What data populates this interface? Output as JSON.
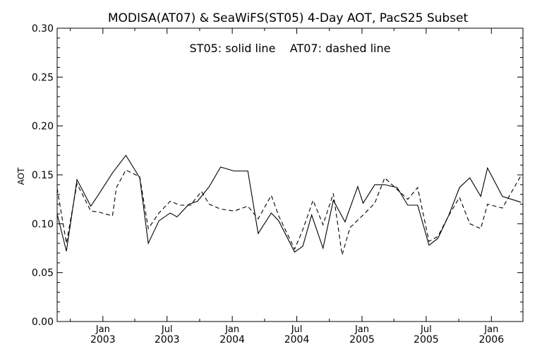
{
  "chart_data": {
    "type": "line",
    "title": "MODISA(AT07) & SeaWiFS(ST05) 4-Day AOT, PacS25 Subset",
    "annotation": "ST05: solid line    AT07: dashed line",
    "ylabel": "AOT",
    "xlabel": "",
    "ylim": [
      0.0,
      0.3
    ],
    "xlim": [
      "2002-08-25",
      "2006-03-31"
    ],
    "grid": false,
    "legend": "none",
    "line_color": "#000000",
    "y_ticks": [
      "0.00",
      "0.05",
      "0.10",
      "0.15",
      "0.20",
      "0.25",
      "0.30"
    ],
    "x_ticks": [
      {
        "date": "2003-01-01",
        "month": "Jan",
        "year": "2003"
      },
      {
        "date": "2003-07-01",
        "month": "Jul",
        "year": "2003"
      },
      {
        "date": "2004-01-01",
        "month": "Jan",
        "year": "2004"
      },
      {
        "date": "2004-07-01",
        "month": "Jul",
        "year": "2004"
      },
      {
        "date": "2005-01-01",
        "month": "Jan",
        "year": "2005"
      },
      {
        "date": "2005-07-01",
        "month": "Jul",
        "year": "2005"
      },
      {
        "date": "2006-01-01",
        "month": "Jan",
        "year": "2006"
      }
    ],
    "x_minor_ticks": [
      "2002-10-01",
      "2003-04-01",
      "2003-10-01",
      "2004-04-01",
      "2004-10-01",
      "2005-04-01",
      "2005-10-01"
    ],
    "series": [
      {
        "name": "ST05",
        "style": "solid",
        "points": [
          [
            "2002-08-25",
            0.11
          ],
          [
            "2002-09-20",
            0.072
          ],
          [
            "2002-10-20",
            0.145
          ],
          [
            "2002-11-28",
            0.118
          ],
          [
            "2002-12-20",
            0.13
          ],
          [
            "2003-01-28",
            0.152
          ],
          [
            "2003-03-07",
            0.17
          ],
          [
            "2003-04-15",
            0.147
          ],
          [
            "2003-05-09",
            0.08
          ],
          [
            "2003-06-08",
            0.103
          ],
          [
            "2003-07-10",
            0.111
          ],
          [
            "2003-07-29",
            0.107
          ],
          [
            "2003-09-01",
            0.12
          ],
          [
            "2003-09-25",
            0.123
          ],
          [
            "2003-10-28",
            0.138
          ],
          [
            "2003-11-29",
            0.158
          ],
          [
            "2004-01-06",
            0.154
          ],
          [
            "2004-02-14",
            0.154
          ],
          [
            "2004-03-14",
            0.09
          ],
          [
            "2004-04-20",
            0.111
          ],
          [
            "2004-05-11",
            0.103
          ],
          [
            "2004-06-25",
            0.071
          ],
          [
            "2004-07-18",
            0.077
          ],
          [
            "2004-08-12",
            0.109
          ],
          [
            "2004-09-13",
            0.075
          ],
          [
            "2004-10-12",
            0.124
          ],
          [
            "2004-11-14",
            0.102
          ],
          [
            "2004-12-20",
            0.138
          ],
          [
            "2005-01-04",
            0.121
          ],
          [
            "2005-02-06",
            0.14
          ],
          [
            "2005-03-06",
            0.14
          ],
          [
            "2005-04-10",
            0.137
          ],
          [
            "2005-05-10",
            0.119
          ],
          [
            "2005-06-07",
            0.119
          ],
          [
            "2005-07-09",
            0.078
          ],
          [
            "2005-08-03",
            0.085
          ],
          [
            "2005-09-02",
            0.108
          ],
          [
            "2005-10-03",
            0.137
          ],
          [
            "2005-11-01",
            0.147
          ],
          [
            "2005-12-02",
            0.128
          ],
          [
            "2005-12-21",
            0.157
          ],
          [
            "2006-02-01",
            0.128
          ],
          [
            "2006-03-25",
            0.122
          ]
        ]
      },
      {
        "name": "AT07",
        "style": "dashed",
        "points": [
          [
            "2002-08-25",
            0.136
          ],
          [
            "2002-09-20",
            0.08
          ],
          [
            "2002-10-20",
            0.141
          ],
          [
            "2002-11-28",
            0.113
          ],
          [
            "2002-12-20",
            0.112
          ],
          [
            "2003-01-28",
            0.108
          ],
          [
            "2003-02-08",
            0.137
          ],
          [
            "2003-03-07",
            0.155
          ],
          [
            "2003-04-15",
            0.148
          ],
          [
            "2003-05-09",
            0.095
          ],
          [
            "2003-06-08",
            0.111
          ],
          [
            "2003-07-10",
            0.123
          ],
          [
            "2003-08-07",
            0.119
          ],
          [
            "2003-09-05",
            0.119
          ],
          [
            "2003-10-06",
            0.133
          ],
          [
            "2003-10-28",
            0.12
          ],
          [
            "2003-11-29",
            0.115
          ],
          [
            "2004-01-06",
            0.113
          ],
          [
            "2004-02-14",
            0.118
          ],
          [
            "2004-03-14",
            0.105
          ],
          [
            "2004-04-20",
            0.129
          ],
          [
            "2004-05-11",
            0.108
          ],
          [
            "2004-06-25",
            0.074
          ],
          [
            "2004-07-18",
            0.094
          ],
          [
            "2004-08-16",
            0.124
          ],
          [
            "2004-09-13",
            0.099
          ],
          [
            "2004-10-12",
            0.131
          ],
          [
            "2004-11-06",
            0.068
          ],
          [
            "2004-11-28",
            0.096
          ],
          [
            "2005-01-04",
            0.109
          ],
          [
            "2005-02-06",
            0.121
          ],
          [
            "2005-03-06",
            0.147
          ],
          [
            "2005-04-10",
            0.135
          ],
          [
            "2005-05-10",
            0.125
          ],
          [
            "2005-06-07",
            0.137
          ],
          [
            "2005-07-09",
            0.082
          ],
          [
            "2005-08-03",
            0.087
          ],
          [
            "2005-09-02",
            0.108
          ],
          [
            "2005-10-03",
            0.127
          ],
          [
            "2005-11-01",
            0.1
          ],
          [
            "2005-12-02",
            0.095
          ],
          [
            "2005-12-21",
            0.12
          ],
          [
            "2006-02-01",
            0.116
          ],
          [
            "2006-03-25",
            0.149
          ]
        ]
      }
    ]
  }
}
